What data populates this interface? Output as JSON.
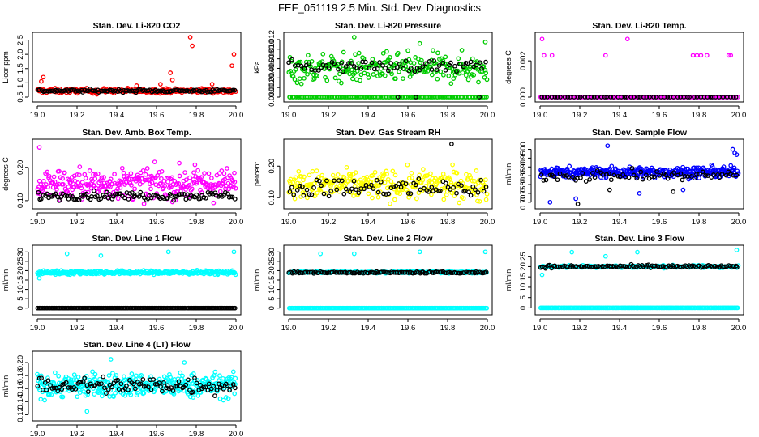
{
  "page": {
    "title": "FEF_051119  2.5 Min. Std. Dev. Diagnostics"
  },
  "chart_data": [
    {
      "type": "scatter",
      "title": "Stan. Dev. Li-820 CO2",
      "ylabel": "Licor ppm",
      "xlim": [
        19.0,
        20.0
      ],
      "ylim": [
        0.5,
        2.6
      ],
      "xticks": [
        "19.0",
        "19.2",
        "19.4",
        "19.6",
        "19.8",
        "20.0"
      ],
      "yticks": [
        "0.5",
        "1.0",
        "1.5",
        "2.0",
        "2.5"
      ],
      "series": [
        {
          "name": "primary",
          "color": "#ff0000",
          "base": 0.72,
          "spread": 0.08,
          "n": 260,
          "outliers": [
            [
              19.02,
              1.05
            ],
            [
              19.03,
              1.2
            ],
            [
              19.62,
              0.95
            ],
            [
              19.67,
              1.35
            ],
            [
              19.68,
              1.1
            ],
            [
              19.77,
              2.6
            ],
            [
              19.78,
              2.3
            ],
            [
              19.99,
              2.0
            ],
            [
              19.98,
              1.6
            ],
            [
              19.88,
              0.95
            ],
            [
              19.5,
              0.9
            ],
            [
              19.3,
              0.6
            ]
          ]
        },
        {
          "name": "secondary",
          "color": "#000000",
          "base": 0.72,
          "spread": 0.05,
          "n": 110,
          "outliers": []
        }
      ]
    },
    {
      "type": "scatter",
      "title": "Stan. Dev. Li-820 Pressure",
      "ylabel": "kPa",
      "xlim": [
        19.0,
        20.0
      ],
      "ylim": [
        0.0,
        0.0125
      ],
      "xticks": [
        "19.0",
        "19.2",
        "19.4",
        "19.6",
        "19.8",
        "20.0"
      ],
      "yticks": [
        "0.000",
        "0.002",
        "0.004",
        "0.006",
        "0.008",
        "0.010",
        "0.012"
      ],
      "series": [
        {
          "name": "primary",
          "color": "#00cc00",
          "base": 0.006,
          "spread": 0.003,
          "n": 240,
          "outliers": [
            [
              19.33,
              0.0125
            ],
            [
              19.66,
              0.0112
            ],
            [
              19.99,
              0.0115
            ]
          ]
        },
        {
          "name": "baseline",
          "color": "#00cc00",
          "base": 0.0,
          "spread": 0.0,
          "n": 120,
          "outliers": []
        },
        {
          "name": "secondary",
          "color": "#000000",
          "base": 0.0065,
          "spread": 0.0012,
          "n": 70,
          "outliers": [
            [
              19.64,
              0.0
            ],
            [
              19.96,
              0.0
            ],
            [
              19.55,
              0.0
            ]
          ]
        }
      ]
    },
    {
      "type": "scatter",
      "title": "Stan. Dev. Li-820 Temp.",
      "ylabel": "degrees C",
      "xlim": [
        19.0,
        20.0
      ],
      "ylim": [
        0.0,
        0.0033
      ],
      "xticks": [
        "19.0",
        "19.2",
        "19.4",
        "19.6",
        "19.8",
        "20.0"
      ],
      "yticks": [
        "0.000",
        "0.002"
      ],
      "series": [
        {
          "name": "primary",
          "color": "#ff00ff",
          "base": 0.0,
          "spread": 0.0,
          "n": 130,
          "outliers": [
            [
              19.01,
              0.0032
            ],
            [
              19.02,
              0.0023
            ],
            [
              19.06,
              0.0023
            ],
            [
              19.33,
              0.0023
            ],
            [
              19.44,
              0.0032
            ],
            [
              19.77,
              0.0023
            ],
            [
              19.79,
              0.0023
            ],
            [
              19.81,
              0.0023
            ],
            [
              19.84,
              0.0023
            ],
            [
              19.95,
              0.0023
            ],
            [
              19.96,
              0.0023
            ]
          ]
        },
        {
          "name": "secondary",
          "color": "#000000",
          "base": 0.0,
          "spread": 0.0,
          "n": 60,
          "outliers": []
        }
      ]
    },
    {
      "type": "scatter",
      "title": "Stan. Dev. Amb. Box Temp.",
      "ylabel": "degrees C",
      "xlim": [
        19.0,
        20.0
      ],
      "ylim": [
        0.09,
        0.27
      ],
      "xticks": [
        "19.0",
        "19.2",
        "19.4",
        "19.6",
        "19.8",
        "20.0"
      ],
      "yticks": [
        "0.10",
        "0.20"
      ],
      "series": [
        {
          "name": "primary",
          "color": "#ff00ff",
          "base": 0.15,
          "spread": 0.045,
          "n": 300,
          "outliers": [
            [
              19.01,
              0.26
            ]
          ]
        },
        {
          "name": "secondary",
          "color": "#000000",
          "base": 0.115,
          "spread": 0.012,
          "n": 110,
          "outliers": []
        }
      ]
    },
    {
      "type": "scatter",
      "title": "Stan. Dev. Gas Stream RH",
      "ylabel": "percent",
      "xlim": [
        19.0,
        20.0
      ],
      "ylim": [
        0.08,
        0.27
      ],
      "xticks": [
        "19.0",
        "19.2",
        "19.4",
        "19.6",
        "19.8",
        "20.0"
      ],
      "yticks": [
        "0.10",
        "0.20"
      ],
      "series": [
        {
          "name": "primary",
          "color": "#ffff00",
          "base": 0.14,
          "spread": 0.045,
          "n": 300,
          "outliers": []
        },
        {
          "name": "secondary",
          "color": "#000000",
          "base": 0.13,
          "spread": 0.03,
          "n": 80,
          "outliers": [
            [
              19.82,
              0.27
            ]
          ]
        }
      ]
    },
    {
      "type": "scatter",
      "title": "Stan. Dev. Sample Flow",
      "ylabel": "ml/min",
      "xlim": [
        19.0,
        20.0
      ],
      "ylim": [
        0.69,
        1.03
      ],
      "xticks": [
        "19.0",
        "19.2",
        "19.4",
        "19.6",
        "19.8",
        "20.0"
      ],
      "yticks": [
        "0.70",
        "0.75",
        "0.80",
        "0.85",
        "0.90",
        "0.95",
        "1.00"
      ],
      "series": [
        {
          "name": "primary",
          "color": "#0000ff",
          "base": 0.87,
          "spread": 0.03,
          "n": 340,
          "outliers": [
            [
              19.34,
              1.02
            ],
            [
              19.05,
              0.7
            ],
            [
              19.18,
              0.72
            ],
            [
              19.5,
              0.75
            ],
            [
              19.72,
              0.77
            ],
            [
              19.97,
              1.0
            ],
            [
              19.98,
              0.98
            ],
            [
              19.99,
              0.97
            ]
          ]
        },
        {
          "name": "secondary",
          "color": "#000000",
          "base": 0.85,
          "spread": 0.03,
          "n": 70,
          "outliers": [
            [
              19.67,
              0.76
            ],
            [
              19.35,
              0.77
            ],
            [
              19.19,
              0.69
            ]
          ]
        }
      ]
    },
    {
      "type": "scatter",
      "title": "Stan. Dev. Line 1 Flow",
      "ylabel": "ml/min",
      "xlim": [
        19.0,
        20.0
      ],
      "ylim": [
        -1,
        31
      ],
      "xticks": [
        "19.0",
        "19.2",
        "19.4",
        "19.6",
        "19.8",
        "20.0"
      ],
      "yticks": [
        "0",
        "5",
        "10",
        "15",
        "20",
        "25",
        "30"
      ],
      "series": [
        {
          "name": "primary",
          "color": "#00ffff",
          "base": 19,
          "spread": 1.0,
          "n": 300,
          "outliers": [
            [
              19.15,
              29
            ],
            [
              19.32,
              28
            ],
            [
              19.01,
              16
            ],
            [
              19.66,
              30
            ],
            [
              19.99,
              30
            ]
          ]
        },
        {
          "name": "secondary",
          "color": "#000000",
          "base": 0,
          "spread": 0,
          "n": 160,
          "outliers": []
        }
      ]
    },
    {
      "type": "scatter",
      "title": "Stan. Dev. Line 2 Flow",
      "ylabel": "ml/min",
      "xlim": [
        19.0,
        20.0
      ],
      "ylim": [
        -1,
        31
      ],
      "xticks": [
        "19.0",
        "19.2",
        "19.4",
        "19.6",
        "19.8",
        "20.0"
      ],
      "yticks": [
        "0",
        "5",
        "10",
        "15",
        "20",
        "25",
        "30"
      ],
      "series": [
        {
          "name": "primary",
          "color": "#00ffff",
          "base": 19.2,
          "spread": 0.5,
          "n": 220,
          "outliers": [
            [
              19.16,
              29
            ],
            [
              19.33,
              29
            ],
            [
              19.66,
              30
            ],
            [
              19.99,
              30
            ]
          ]
        },
        {
          "name": "baseline",
          "color": "#00ffff",
          "base": 0,
          "spread": 0,
          "n": 160,
          "outliers": []
        },
        {
          "name": "secondary",
          "color": "#000000",
          "base": 19.0,
          "spread": 0.4,
          "n": 120,
          "outliers": []
        }
      ]
    },
    {
      "type": "scatter",
      "title": "Stan. Dev. Line 3 Flow",
      "ylabel": "ml/min",
      "xlim": [
        19.0,
        20.0
      ],
      "ylim": [
        -1,
        28
      ],
      "xticks": [
        "19.0",
        "19.2",
        "19.4",
        "19.6",
        "19.8",
        "20.0"
      ],
      "yticks": [
        "0",
        "5",
        "10",
        "15",
        "20",
        "25"
      ],
      "series": [
        {
          "name": "primary",
          "color": "#00ffff",
          "base": 20,
          "spread": 0.6,
          "n": 220,
          "outliers": [
            [
              19.01,
              16
            ],
            [
              19.16,
              27
            ],
            [
              19.33,
              25
            ],
            [
              19.49,
              27
            ],
            [
              19.99,
              28
            ]
          ]
        },
        {
          "name": "baseline",
          "color": "#00ffff",
          "base": 0,
          "spread": 0,
          "n": 160,
          "outliers": []
        },
        {
          "name": "secondary",
          "color": "#000000",
          "base": 20,
          "spread": 0.7,
          "n": 110,
          "outliers": []
        }
      ]
    },
    {
      "type": "scatter",
      "title": "Stan. Dev. Line 4 (LT) Flow",
      "ylabel": "ml/min",
      "xlim": [
        19.0,
        20.0
      ],
      "ylim": [
        0.118,
        0.21
      ],
      "xticks": [
        "19.0",
        "19.2",
        "19.4",
        "19.6",
        "19.8",
        "20.0"
      ],
      "yticks": [
        "0.12",
        "0.14",
        "0.16",
        "0.18",
        "0.20"
      ],
      "series": [
        {
          "name": "primary",
          "color": "#00ffff",
          "base": 0.165,
          "spread": 0.018,
          "n": 360,
          "outliers": [
            [
              19.37,
              0.205
            ],
            [
              19.25,
              0.125
            ],
            [
              19.74,
              0.2
            ]
          ]
        },
        {
          "name": "secondary",
          "color": "#000000",
          "base": 0.165,
          "spread": 0.014,
          "n": 110,
          "outliers": []
        }
      ]
    }
  ]
}
